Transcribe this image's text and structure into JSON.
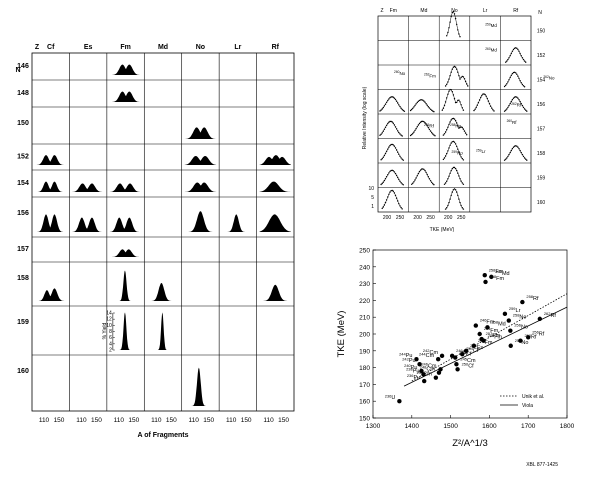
{
  "mass_grid": {
    "z_label": "Z",
    "n_label": "N",
    "columns": [
      "Cf",
      "Es",
      "Fm",
      "Md",
      "No",
      "Lr",
      "Rf"
    ],
    "rows": [
      "146",
      "148",
      "150",
      "152",
      "154",
      "156",
      "157",
      "158",
      "159",
      "160"
    ],
    "x_ticks": [
      "110",
      "150",
      "110",
      "150",
      "110",
      "150",
      "110",
      "150",
      "110",
      "150",
      "110",
      "150",
      "110",
      "150"
    ],
    "xlabel": "A of Fragments",
    "yield_label": "% Yield",
    "yield_ticks": [
      "14",
      "12",
      "10",
      "8",
      "6",
      "4",
      "2"
    ]
  },
  "tke_grid": {
    "z_label": "Z",
    "n_label": "N",
    "columns": [
      "Fm",
      "Md",
      "No",
      "Lr",
      "Rf"
    ],
    "rows": [
      "150",
      "152",
      "154",
      "156",
      "157",
      "158",
      "159",
      "160"
    ],
    "ylabel": "Relative Intensity (log scale)",
    "xlabel": "TKE (MeV)",
    "x_ticks": [
      "200",
      "250",
      "200",
      "250",
      "200",
      "250"
    ],
    "y_ticks": [
      "10",
      "5",
      "1"
    ],
    "cell_labels": [
      {
        "sym": "Rf",
        "mass": "256"
      },
      {
        "sym": "No",
        "mass": "260"
      },
      {
        "sym": "Fm",
        "mass": "262"
      },
      {
        "sym": "Rf",
        "mass": "262"
      },
      {
        "sym": "No",
        "mass": "258"
      },
      {
        "sym": "No",
        "mass": "259"
      },
      {
        "sym": "Rf",
        "mass": "260"
      },
      {
        "sym": "Lr",
        "mass": "259"
      },
      {
        "sym": "Md",
        "mass": "259"
      },
      {
        "sym": "Md",
        "mass": "260"
      },
      {
        "sym": "No",
        "mass": "262"
      }
    ]
  },
  "chart_data": {
    "type": "scatter",
    "xlabel": "Z²/A^1/3",
    "ylabel": "TKE (MeV)",
    "xlim": [
      1300,
      1800
    ],
    "ylim": [
      150,
      250
    ],
    "x_ticks": [
      "1300",
      "1400",
      "1500",
      "1600",
      "1700",
      "1800"
    ],
    "y_ticks": [
      "150",
      "160",
      "170",
      "180",
      "190",
      "200",
      "210",
      "220",
      "230",
      "240",
      "250"
    ],
    "grid": false,
    "legend": "bottom-right",
    "legend_entries": [
      "Unik et al.",
      "Viola"
    ],
    "points": [
      {
        "sym": "Fm",
        "mass": "258",
        "x": 1588,
        "y": 235
      },
      {
        "sym": "Md",
        "mass": "260",
        "x": 1605,
        "y": 234
      },
      {
        "sym": "Fm",
        "mass": "258",
        "x": 1590,
        "y": 231
      },
      {
        "sym": "Rf",
        "mass": "258",
        "x": 1685,
        "y": 219
      },
      {
        "sym": "Lr",
        "mass": "259",
        "x": 1640,
        "y": 212
      },
      {
        "sym": "Rf",
        "mass": "262",
        "x": 1730,
        "y": 209
      },
      {
        "sym": "No",
        "mass": "258",
        "x": 1650,
        "y": 208
      },
      {
        "sym": "Fm",
        "mass": "246",
        "x": 1565,
        "y": 205
      },
      {
        "sym": "Md",
        "mass": "258",
        "x": 1595,
        "y": 204
      },
      {
        "sym": "No",
        "mass": "256",
        "x": 1654,
        "y": 202
      },
      {
        "sym": "Fm",
        "mass": "254",
        "x": 1575,
        "y": 200
      },
      {
        "sym": "Fm",
        "mass": "257",
        "x": 1580,
        "y": 197
      },
      {
        "sym": "Fm",
        "mass": "246",
        "x": 1585,
        "y": 196
      },
      {
        "sym": "Rf",
        "mass": "256",
        "x": 1700,
        "y": 198
      },
      {
        "sym": "Rf",
        "mass": "260",
        "x": 1680,
        "y": 196
      },
      {
        "sym": "No",
        "mass": "252",
        "x": 1655,
        "y": 193
      },
      {
        "sym": "Fm",
        "mass": "254",
        "x": 1560,
        "y": 193
      },
      {
        "sym": "Es",
        "mass": "253",
        "x": 1540,
        "y": 190
      },
      {
        "sym": "Cf",
        "mass": "254",
        "x": 1530,
        "y": 188
      },
      {
        "sym": "Cm",
        "mass": "242",
        "x": 1478,
        "y": 187
      },
      {
        "sym": "Cf",
        "mass": "252",
        "x": 1512,
        "y": 186
      },
      {
        "sym": "Pu",
        "mass": "244",
        "x": 1412,
        "y": 185
      },
      {
        "sym": "Cm",
        "mass": "244",
        "x": 1468,
        "y": 185
      },
      {
        "sym": "Cf",
        "mass": "246",
        "x": 1504,
        "y": 187
      },
      {
        "sym": "Pu",
        "mass": "242",
        "x": 1420,
        "y": 182
      },
      {
        "sym": "Pu",
        "mass": "240",
        "x": 1425,
        "y": 178
      },
      {
        "sym": "Cm",
        "mass": "246",
        "x": 1474,
        "y": 179
      },
      {
        "sym": "Cm",
        "mass": "248",
        "x": 1470,
        "y": 177
      },
      {
        "sym": "Cm",
        "mass": "245",
        "x": 1515,
        "y": 182
      },
      {
        "sym": "Pu",
        "mass": "238",
        "x": 1430,
        "y": 176
      },
      {
        "sym": "Cm",
        "mass": "250",
        "x": 1462,
        "y": 174
      },
      {
        "sym": "Cf",
        "mass": "250",
        "x": 1518,
        "y": 179
      },
      {
        "sym": "Pu",
        "mass": "236",
        "x": 1432,
        "y": 172
      },
      {
        "sym": "U",
        "mass": "236",
        "x": 1368,
        "y": 160
      }
    ],
    "lines": [
      {
        "name": "Viola",
        "style": "solid",
        "x": [
          1380,
          1800
        ],
        "y": [
          169,
          216
        ]
      },
      {
        "name": "Unik et al.",
        "style": "dotted",
        "x": [
          1400,
          1800
        ],
        "y": [
          172,
          224
        ]
      }
    ]
  },
  "footnote": "XBL 877-1425"
}
